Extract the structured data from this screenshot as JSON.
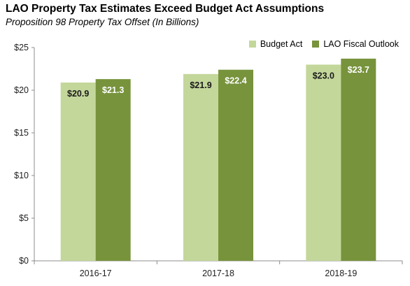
{
  "chart_data": {
    "type": "bar",
    "title": "LAO Property Tax Estimates Exceed Budget Act Assumptions",
    "subtitle": "Proposition 98 Property Tax Offset (In Billions)",
    "categories": [
      "2016-17",
      "2017-18",
      "2018-19"
    ],
    "series": [
      {
        "name": "Budget Act",
        "values": [
          20.9,
          21.9,
          23.0
        ],
        "labels": [
          "$20.9",
          "$21.9",
          "$23.0"
        ],
        "color": "#c4d79b",
        "label_color": "#1a1a1a"
      },
      {
        "name": "LAO Fiscal Outlook",
        "values": [
          21.3,
          22.4,
          23.7
        ],
        "labels": [
          "$21.3",
          "$22.4",
          "$23.7"
        ],
        "color": "#77933c",
        "label_color": "#ffffff"
      }
    ],
    "ylim": [
      0,
      25
    ],
    "yticks": [
      0,
      5,
      10,
      15,
      20,
      25
    ],
    "ytick_labels": [
      "$0",
      "$5",
      "$10",
      "$15",
      "$20",
      "$25"
    ],
    "grid": false,
    "legend_position": "top-right"
  }
}
